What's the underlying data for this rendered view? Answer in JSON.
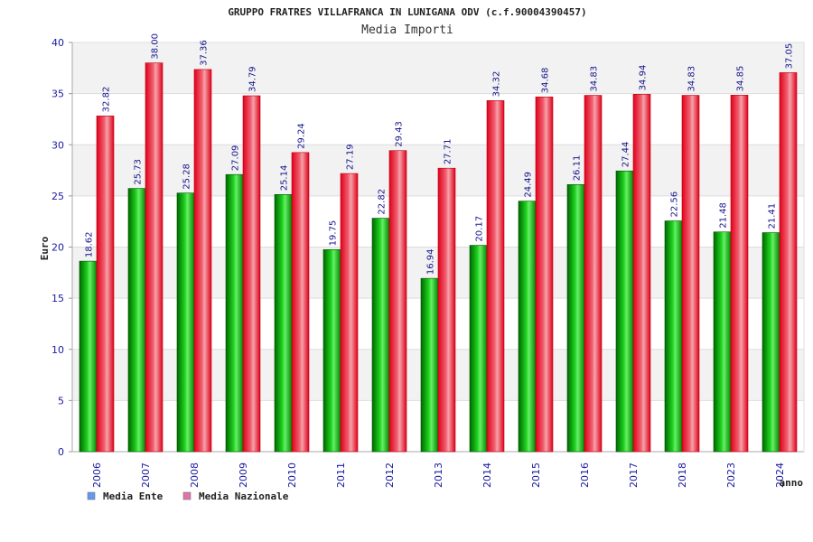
{
  "chart_data": {
    "type": "bar",
    "title": "GRUPPO FRATRES VILLAFRANCA IN LUNIGANA ODV (c.f.90004390457)",
    "subtitle": "Media Importi",
    "xlabel": "anno",
    "ylabel": "Euro",
    "ylim": [
      0,
      40
    ],
    "yticks": [
      0,
      5,
      10,
      15,
      20,
      25,
      30,
      35,
      40
    ],
    "grid": true,
    "legend_position": "bottom-left",
    "categories": [
      "2006",
      "2007",
      "2008",
      "2009",
      "2010",
      "2011",
      "2012",
      "2013",
      "2014",
      "2015",
      "2016",
      "2017",
      "2018",
      "2023",
      "2024"
    ],
    "series": [
      {
        "name": "Media Ente",
        "color": "#00aa00",
        "legend_color": "#6699ee",
        "values": [
          18.62,
          25.73,
          25.28,
          27.09,
          25.14,
          19.75,
          22.82,
          16.94,
          20.17,
          24.49,
          26.11,
          27.44,
          22.56,
          21.48,
          21.41
        ],
        "labels": [
          "18.62",
          "25.73",
          "25.28",
          "27.09",
          "25.14",
          "19.75",
          "22.82",
          "16.94",
          "20.17",
          "24.49",
          "26.11",
          "27.44",
          "22.56",
          "21.48",
          "21.41"
        ]
      },
      {
        "name": "Media Nazionale",
        "color": "#ee1122",
        "legend_color": "#dd77aa",
        "values": [
          32.82,
          38.0,
          37.36,
          34.79,
          29.24,
          27.19,
          29.43,
          27.71,
          34.32,
          34.68,
          34.83,
          34.94,
          34.83,
          34.85,
          37.05
        ],
        "labels": [
          "32.82",
          "38.00",
          "37.36",
          "34.79",
          "29.24",
          "27.19",
          "29.43",
          "27.71",
          "34.32",
          "34.68",
          "34.83",
          "34.94",
          "34.83",
          "34.85",
          "37.05"
        ]
      }
    ]
  }
}
